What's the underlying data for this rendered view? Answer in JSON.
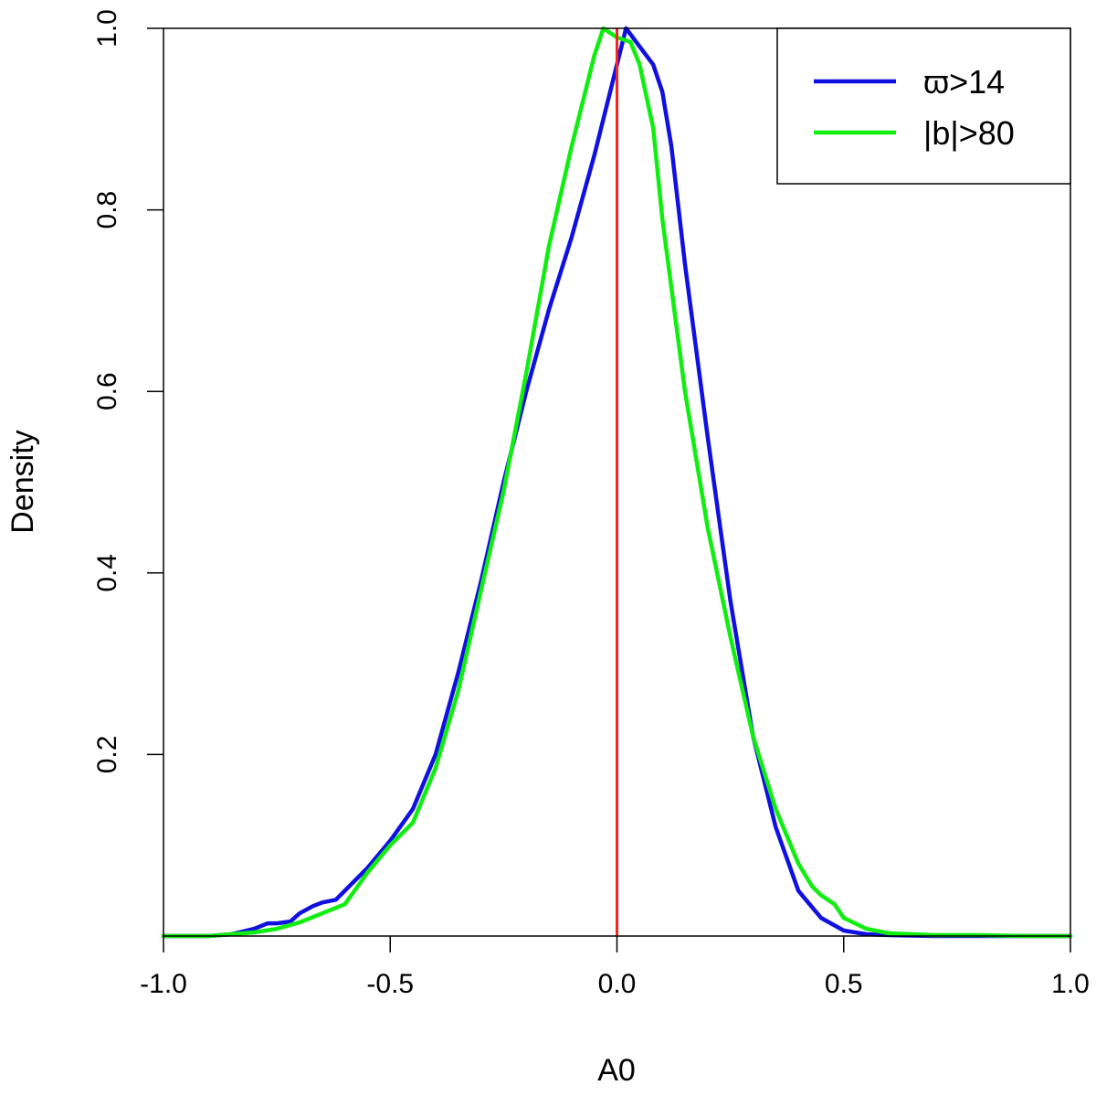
{
  "chart_data": {
    "type": "line",
    "title": "",
    "xlabel": "A0",
    "ylabel": "Density",
    "xlim": [
      -1.0,
      1.0
    ],
    "ylim": [
      0.0,
      1.0
    ],
    "grid": false,
    "legend_position": "top-right",
    "x_ticks": [
      "-1.0",
      "-0.5",
      "0.0",
      "0.5",
      "1.0"
    ],
    "y_ticks": [
      "0.2",
      "0.4",
      "0.6",
      "0.8",
      "1.0"
    ],
    "reference_line": {
      "x": 0.0,
      "color": "#ff2020"
    },
    "series": [
      {
        "name": "ϖ>14",
        "color": "#1010e0",
        "x": [
          -1.0,
          -0.9,
          -0.85,
          -0.8,
          -0.77,
          -0.75,
          -0.72,
          -0.7,
          -0.67,
          -0.65,
          -0.62,
          -0.6,
          -0.55,
          -0.5,
          -0.45,
          -0.4,
          -0.35,
          -0.3,
          -0.25,
          -0.2,
          -0.15,
          -0.1,
          -0.05,
          0.0,
          0.02,
          0.05,
          0.08,
          0.1,
          0.12,
          0.15,
          0.2,
          0.25,
          0.3,
          0.35,
          0.4,
          0.45,
          0.5,
          0.55,
          0.6,
          0.7,
          0.8,
          0.9,
          1.0
        ],
        "y": [
          0.0,
          0.0,
          0.002,
          0.008,
          0.014,
          0.014,
          0.016,
          0.025,
          0.033,
          0.037,
          0.04,
          0.05,
          0.075,
          0.105,
          0.14,
          0.2,
          0.29,
          0.39,
          0.5,
          0.6,
          0.69,
          0.77,
          0.86,
          0.96,
          1.0,
          0.98,
          0.96,
          0.93,
          0.87,
          0.74,
          0.55,
          0.37,
          0.22,
          0.12,
          0.05,
          0.02,
          0.006,
          0.002,
          0.001,
          0.0,
          0.0,
          0.0,
          0.0
        ]
      },
      {
        "name": "|b|>80",
        "color": "#10ee10",
        "x": [
          -1.0,
          -0.9,
          -0.85,
          -0.8,
          -0.75,
          -0.7,
          -0.65,
          -0.6,
          -0.55,
          -0.5,
          -0.45,
          -0.4,
          -0.35,
          -0.3,
          -0.25,
          -0.2,
          -0.15,
          -0.1,
          -0.05,
          -0.03,
          0.0,
          0.03,
          0.05,
          0.08,
          0.1,
          0.15,
          0.2,
          0.25,
          0.3,
          0.35,
          0.4,
          0.43,
          0.45,
          0.48,
          0.5,
          0.55,
          0.6,
          0.7,
          0.8,
          0.9,
          1.0
        ],
        "y": [
          0.0,
          0.0,
          0.002,
          0.004,
          0.008,
          0.015,
          0.025,
          0.035,
          0.07,
          0.1,
          0.125,
          0.185,
          0.27,
          0.38,
          0.49,
          0.62,
          0.76,
          0.87,
          0.97,
          1.0,
          0.99,
          0.985,
          0.96,
          0.89,
          0.79,
          0.6,
          0.45,
          0.33,
          0.22,
          0.14,
          0.08,
          0.055,
          0.045,
          0.035,
          0.02,
          0.008,
          0.003,
          0.001,
          0.001,
          0.0,
          0.0
        ]
      }
    ]
  }
}
